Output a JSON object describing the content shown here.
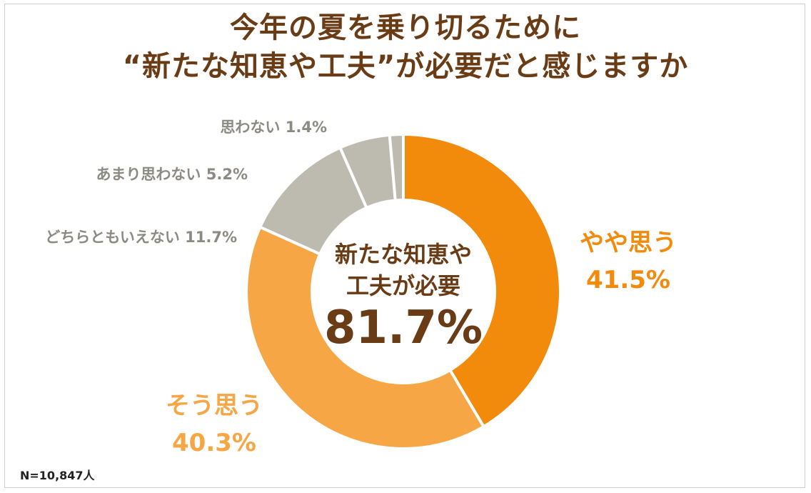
{
  "chart_data": {
    "type": "pie",
    "title": [
      "今年の夏を乗り切るために",
      "“新たな知恵や工夫”が必要だと感じますか"
    ],
    "slices": [
      {
        "label": "やや思う",
        "value": 41.5,
        "value_text": "41.5%",
        "color": "#F28A0C"
      },
      {
        "label": "そう思う",
        "value": 40.3,
        "value_text": "40.3%",
        "color": "#F7A645"
      },
      {
        "label": "どちらともいえない",
        "value": 11.7,
        "value_text": "11.7%",
        "color": "#BDBAB0"
      },
      {
        "label": "あまり思わない",
        "value": 5.2,
        "value_text": "5.2%",
        "color": "#BDBAB0"
      },
      {
        "label": "思わない",
        "value": 1.4,
        "value_text": "1.4%",
        "color": "#BDBAB0"
      }
    ],
    "center_label": [
      "新たな知恵や",
      "工夫が必要"
    ],
    "center_value": "81.7%",
    "note": "N=10,847人"
  },
  "colors": {
    "title": "#6A3C16",
    "grey_label": "#8C8A82"
  }
}
